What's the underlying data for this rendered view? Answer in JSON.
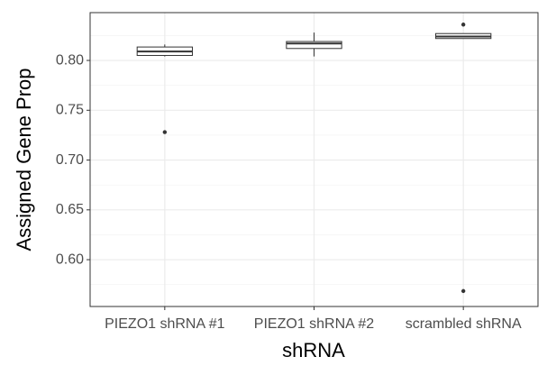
{
  "chart_data": {
    "type": "box",
    "x_label": "shRNA",
    "y_label": "Assigned Gene Prop",
    "categories": [
      "PIEZO1 shRNA #1",
      "PIEZO1 shRNA #2",
      "scrambled shRNA"
    ],
    "boxes": [
      {
        "whisker_low": 0.804,
        "q1": 0.805,
        "median": 0.809,
        "q3": 0.8135,
        "whisker_high": 0.816,
        "outliers": [
          0.728
        ]
      },
      {
        "whisker_low": 0.804,
        "q1": 0.812,
        "median": 0.817,
        "q3": 0.819,
        "whisker_high": 0.828,
        "outliers": []
      },
      {
        "whisker_low": 0.822,
        "q1": 0.822,
        "median": 0.824,
        "q3": 0.827,
        "whisker_high": 0.827,
        "outliers": [
          0.836,
          0.5685
        ]
      }
    ],
    "color": "#333333",
    "ylim": [
      0.553,
      0.848
    ],
    "yticks": [
      {
        "value": 0.6,
        "label": "0.60"
      },
      {
        "value": 0.65,
        "label": "0.65"
      },
      {
        "value": 0.7,
        "label": "0.70"
      },
      {
        "value": 0.75,
        "label": "0.75"
      },
      {
        "value": 0.8,
        "label": "0.80"
      }
    ],
    "grid": true
  }
}
